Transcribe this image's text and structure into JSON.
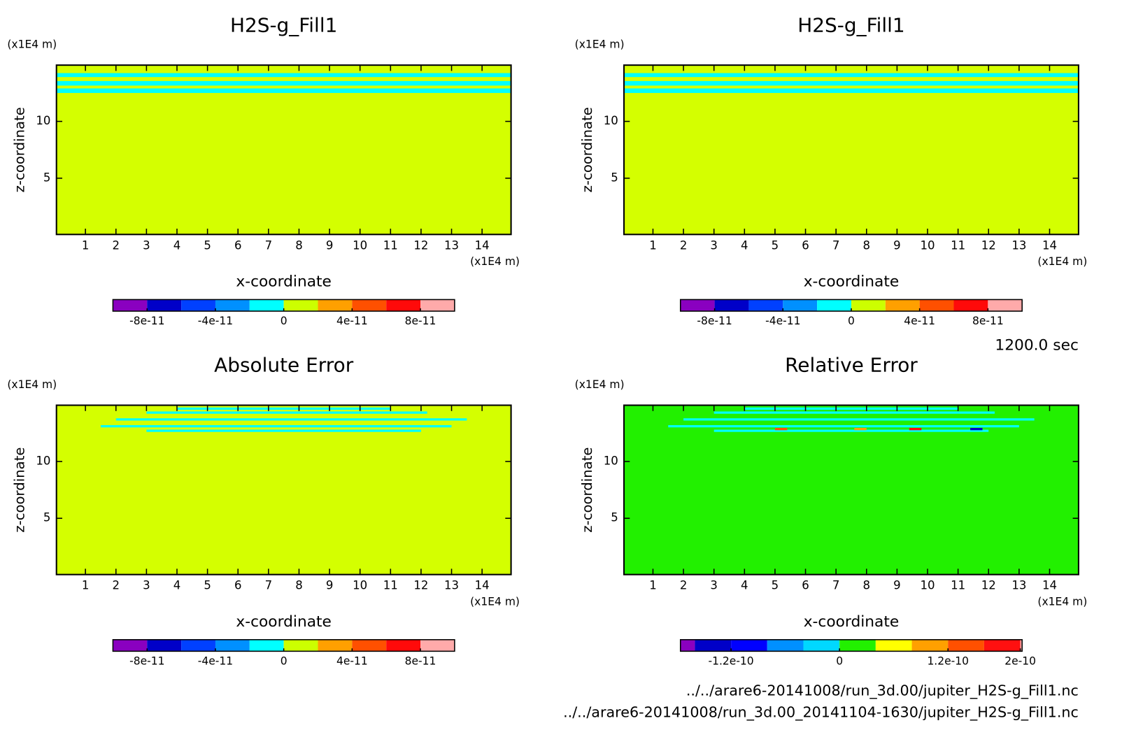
{
  "chart_data": [
    {
      "type": "heatmap",
      "title": "H2S-g_Fill1",
      "x_label": "x-coordinate",
      "y_label": "z-coordinate",
      "x_unit": "(x1E4 m)",
      "y_unit": "(x1E4 m)",
      "xlim": [
        0.05,
        14.95
      ],
      "ylim": [
        0.05,
        14.95
      ],
      "xticks": [
        1,
        2,
        3,
        4,
        5,
        6,
        7,
        8,
        9,
        10,
        11,
        12,
        13,
        14
      ],
      "yticks": [
        5,
        10
      ],
      "background": "#d4ff00",
      "bands": [
        {
          "x": [
            0.05,
            14.95
          ],
          "z": [
            13.9,
            14.25
          ],
          "color": "#00ffff"
        },
        {
          "x": [
            0.05,
            14.95
          ],
          "z": [
            13.15,
            13.55
          ],
          "color": "#00ffff"
        },
        {
          "x": [
            0.05,
            14.95
          ],
          "z": [
            12.5,
            12.9
          ],
          "color": "#00ffff"
        }
      ],
      "colorbar": {
        "bounds": [
          -1e-10,
          -8e-11,
          -6e-11,
          -4e-11,
          -2e-11,
          0,
          2e-11,
          4e-11,
          6e-11,
          8e-11,
          1e-10
        ],
        "colors": [
          "#8a00c0",
          "#0000c8",
          "#0040ff",
          "#0090ff",
          "#00ffff",
          "#ccff00",
          "#ffa000",
          "#ff5000",
          "#ff0a0a",
          "#ffaaaa"
        ],
        "ticks": [
          -8e-11,
          -4e-11,
          0,
          4e-11,
          8e-11
        ]
      }
    },
    {
      "type": "heatmap",
      "title": "H2S-g_Fill1",
      "x_label": "x-coordinate",
      "y_label": "z-coordinate",
      "x_unit": "(x1E4 m)",
      "y_unit": "(x1E4 m)",
      "xlim": [
        0.05,
        14.95
      ],
      "ylim": [
        0.05,
        14.95
      ],
      "xticks": [
        1,
        2,
        3,
        4,
        5,
        6,
        7,
        8,
        9,
        10,
        11,
        12,
        13,
        14
      ],
      "yticks": [
        5,
        10
      ],
      "background": "#d4ff00",
      "bands": [
        {
          "x": [
            0.05,
            14.95
          ],
          "z": [
            13.9,
            14.25
          ],
          "color": "#00ffff"
        },
        {
          "x": [
            0.05,
            14.95
          ],
          "z": [
            13.15,
            13.55
          ],
          "color": "#00ffff"
        },
        {
          "x": [
            0.05,
            14.95
          ],
          "z": [
            12.5,
            12.9
          ],
          "color": "#00ffff"
        }
      ],
      "colorbar": {
        "bounds": [
          -1e-10,
          -8e-11,
          -6e-11,
          -4e-11,
          -2e-11,
          0,
          2e-11,
          4e-11,
          6e-11,
          8e-11,
          1e-10
        ],
        "colors": [
          "#8a00c0",
          "#0000c8",
          "#0040ff",
          "#0090ff",
          "#00ffff",
          "#ccff00",
          "#ffa000",
          "#ff5000",
          "#ff0a0a",
          "#ffaaaa"
        ],
        "ticks": [
          -8e-11,
          -4e-11,
          0,
          4e-11,
          8e-11
        ]
      }
    },
    {
      "type": "heatmap",
      "title": "Absolute Error",
      "x_label": "x-coordinate",
      "y_label": "z-coordinate",
      "x_unit": "(x1E4 m)",
      "y_unit": "(x1E4 m)",
      "xlim": [
        0.05,
        14.95
      ],
      "ylim": [
        0.05,
        14.95
      ],
      "xticks": [
        1,
        2,
        3,
        4,
        5,
        6,
        7,
        8,
        9,
        10,
        11,
        12,
        13,
        14
      ],
      "yticks": [
        5,
        10
      ],
      "background": "#d4ff00",
      "bands": [
        {
          "x": [
            4,
            11
          ],
          "z": [
            14.55,
            14.75
          ],
          "color": "#00ffff"
        },
        {
          "x": [
            3,
            12.2
          ],
          "z": [
            14.2,
            14.4
          ],
          "color": "#00ffff"
        },
        {
          "x": [
            2,
            13.5
          ],
          "z": [
            13.6,
            13.8
          ],
          "color": "#00ffff"
        },
        {
          "x": [
            1.5,
            13
          ],
          "z": [
            13.0,
            13.2
          ],
          "color": "#00ffff"
        },
        {
          "x": [
            3,
            12
          ],
          "z": [
            12.6,
            12.8
          ],
          "color": "#00ffff"
        }
      ],
      "colorbar": {
        "bounds": [
          -1e-10,
          -8e-11,
          -6e-11,
          -4e-11,
          -2e-11,
          0,
          2e-11,
          4e-11,
          6e-11,
          8e-11,
          1e-10
        ],
        "colors": [
          "#8a00c0",
          "#0000c8",
          "#0040ff",
          "#0090ff",
          "#00ffff",
          "#ccff00",
          "#ffa000",
          "#ff5000",
          "#ff0a0a",
          "#ffaaaa"
        ],
        "ticks": [
          -8e-11,
          -4e-11,
          0,
          4e-11,
          8e-11
        ]
      }
    },
    {
      "type": "heatmap",
      "title": "Relative Error",
      "x_label": "x-coordinate",
      "y_label": "z-coordinate",
      "x_unit": "(x1E4 m)",
      "y_unit": "(x1E4 m)",
      "xlim": [
        0.05,
        14.95
      ],
      "ylim": [
        0.05,
        14.95
      ],
      "xticks": [
        1,
        2,
        3,
        4,
        5,
        6,
        7,
        8,
        9,
        10,
        11,
        12,
        13,
        14
      ],
      "yticks": [
        5,
        10
      ],
      "background": "#22f000",
      "bands": [
        {
          "x": [
            4,
            11
          ],
          "z": [
            14.55,
            14.75
          ],
          "color": "#00ffff"
        },
        {
          "x": [
            3,
            12.2
          ],
          "z": [
            14.2,
            14.4
          ],
          "color": "#00ffff"
        },
        {
          "x": [
            2,
            13.5
          ],
          "z": [
            13.6,
            13.8
          ],
          "color": "#00ffff"
        },
        {
          "x": [
            1.5,
            13
          ],
          "z": [
            13.0,
            13.2
          ],
          "color": "#00ffff"
        },
        {
          "x": [
            3,
            12
          ],
          "z": [
            12.6,
            12.8
          ],
          "color": "#00ffff"
        },
        {
          "x": [
            5,
            5.4
          ],
          "z": [
            12.75,
            12.95
          ],
          "color": "#ff5000"
        },
        {
          "x": [
            7.6,
            8.0
          ],
          "z": [
            12.75,
            12.95
          ],
          "color": "#ffa000"
        },
        {
          "x": [
            9.4,
            9.8
          ],
          "z": [
            12.75,
            12.95
          ],
          "color": "#ff0a0a"
        },
        {
          "x": [
            11.4,
            11.8
          ],
          "z": [
            12.75,
            12.95
          ],
          "color": "#0000c8"
        }
      ],
      "colorbar": {
        "bounds": [
          -1.76e-10,
          -1.6e-10,
          -1.2e-10,
          -8e-11,
          -4e-11,
          0,
          4e-11,
          8e-11,
          1.2e-10,
          1.6e-10,
          2e-10,
          2.02e-10
        ],
        "colors": [
          "#8a00c0",
          "#0000c8",
          "#0000ff",
          "#0090ff",
          "#00d8ff",
          "#22f000",
          "#ffff00",
          "#ffa000",
          "#ff5000",
          "#ff1010",
          "#ffaaaa"
        ],
        "ticks": [
          -1.2e-10,
          0,
          1.2e-10,
          2e-10
        ]
      }
    }
  ],
  "time_label": "1200.0 sec",
  "files": [
    "../../arare6-20141008/run_3d.00/jupiter_H2S-g_Fill1.nc",
    "../../arare6-20141008/run_3d.00_20141104-1630/jupiter_H2S-g_Fill1.nc"
  ]
}
